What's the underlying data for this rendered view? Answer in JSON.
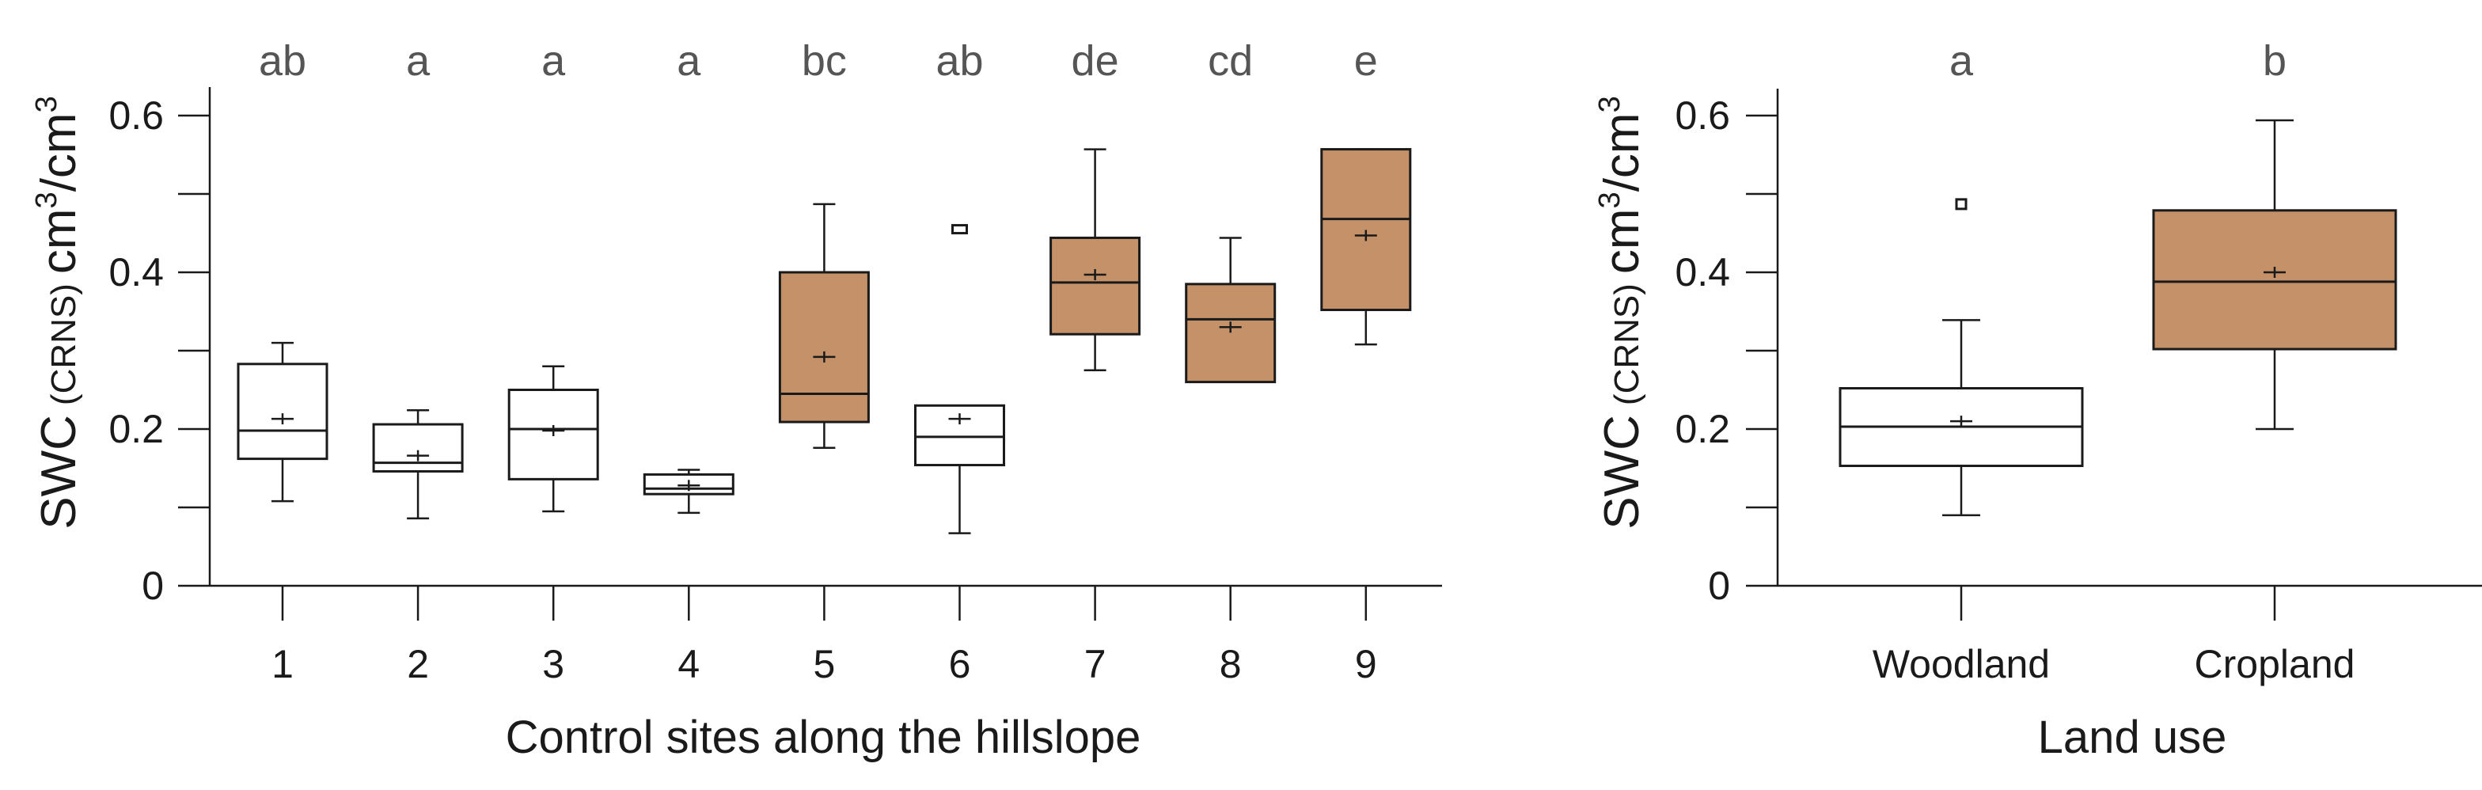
{
  "colors": {
    "filled_box": "#c49169",
    "empty_box": "#ffffff",
    "letters": "#555555",
    "ink": "#1a1a1a"
  },
  "chart_data": [
    {
      "type": "boxplot",
      "xlabel": "Control sites along the hillslope",
      "ylabel_main": "SWC",
      "ylabel_sub": "(CRNS)",
      "ylabel_unit": "cm",
      "ylabel_sup1": "3",
      "ylabel_unit2": "/cm",
      "ylabel_sup2": "3",
      "ylim": [
        0,
        0.63
      ],
      "yticks": [
        0,
        0.1,
        0.2,
        0.3,
        0.4,
        0.5,
        0.6
      ],
      "ytick_labels": [
        "0",
        "",
        "0.2",
        "",
        "0.4",
        "",
        "0.6"
      ],
      "categories": [
        "1",
        "2",
        "3",
        "4",
        "5",
        "6",
        "7",
        "8",
        "9"
      ],
      "letters": [
        "ab",
        "a",
        "a",
        "a",
        "bc",
        "ab",
        "de",
        "cd",
        "e"
      ],
      "boxes": [
        {
          "whisker_low": 0.108,
          "q1": 0.162,
          "median": 0.198,
          "q3": 0.283,
          "whisker_high": 0.31,
          "mean": 0.213,
          "filled": false,
          "outliers": []
        },
        {
          "whisker_low": 0.086,
          "q1": 0.146,
          "median": 0.157,
          "q3": 0.206,
          "whisker_high": 0.224,
          "mean": 0.166,
          "filled": false,
          "outliers": []
        },
        {
          "whisker_low": 0.095,
          "q1": 0.136,
          "median": 0.2,
          "q3": 0.25,
          "whisker_high": 0.28,
          "mean": 0.198,
          "filled": false,
          "outliers": []
        },
        {
          "whisker_low": 0.093,
          "q1": 0.117,
          "median": 0.124,
          "q3": 0.142,
          "whisker_high": 0.148,
          "mean": 0.128,
          "filled": false,
          "outliers": []
        },
        {
          "whisker_low": 0.176,
          "q1": 0.209,
          "median": 0.245,
          "q3": 0.4,
          "whisker_high": 0.487,
          "mean": 0.292,
          "filled": true,
          "outliers": []
        },
        {
          "whisker_low": 0.067,
          "q1": 0.154,
          "median": 0.19,
          "q3": 0.23,
          "whisker_high": 0.23,
          "mean": 0.213,
          "filled": false,
          "outliers": [
            0.455
          ]
        },
        {
          "whisker_low": 0.275,
          "q1": 0.321,
          "median": 0.387,
          "q3": 0.444,
          "whisker_high": 0.557,
          "mean": 0.397,
          "filled": true,
          "outliers": []
        },
        {
          "whisker_low": 0.26,
          "q1": 0.26,
          "median": 0.34,
          "q3": 0.385,
          "whisker_high": 0.444,
          "mean": 0.33,
          "filled": true,
          "outliers": []
        },
        {
          "whisker_low": 0.308,
          "q1": 0.352,
          "median": 0.468,
          "q3": 0.557,
          "whisker_high": 0.557,
          "mean": 0.447,
          "filled": true,
          "outliers": []
        }
      ]
    },
    {
      "type": "boxplot",
      "xlabel": "Land use",
      "ylabel_main": "SWC",
      "ylabel_sub": "(CRNS)",
      "ylabel_unit": "cm",
      "ylabel_sup1": "3",
      "ylabel_unit2": "/cm",
      "ylabel_sup2": "3",
      "ylim": [
        0,
        0.64
      ],
      "yticks": [
        0,
        0.1,
        0.2,
        0.3,
        0.4,
        0.5,
        0.6
      ],
      "ytick_labels": [
        "0",
        "",
        "0.2",
        "",
        "0.4",
        "",
        "0.6"
      ],
      "categories": [
        "Woodland",
        "Cropland"
      ],
      "letters": [
        "a",
        "b"
      ],
      "boxes": [
        {
          "whisker_low": 0.09,
          "q1": 0.153,
          "median": 0.203,
          "q3": 0.252,
          "whisker_high": 0.339,
          "mean": 0.21,
          "filled": false,
          "outliers": [
            0.487
          ]
        },
        {
          "whisker_low": 0.2,
          "q1": 0.302,
          "median": 0.388,
          "q3": 0.479,
          "whisker_high": 0.594,
          "mean": 0.4,
          "filled": true,
          "outliers": []
        }
      ]
    }
  ]
}
